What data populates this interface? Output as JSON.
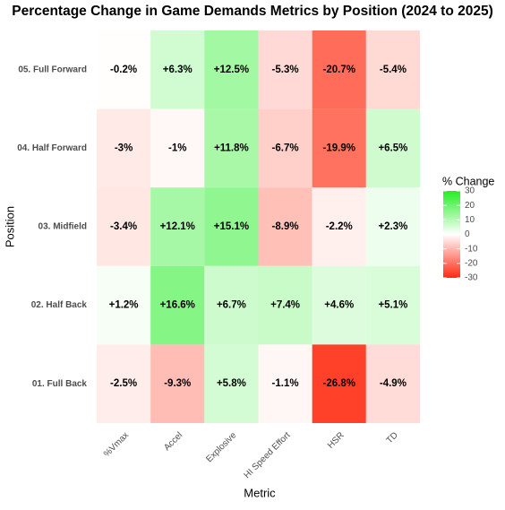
{
  "chart_data": {
    "type": "heatmap",
    "title": "Percentage Change in Game Demands Metrics by Position (2024 to 2025)",
    "x_label": "Metric",
    "y_label": "Position",
    "x_categories": [
      "%Vmax",
      "Accel",
      "Explosive",
      "HI Speed Effort",
      "HSR",
      "TD"
    ],
    "y_categories": [
      "05. Full Forward",
      "04. Half Forward",
      "03. Midfield",
      "02. Half Back",
      "01. Full Back"
    ],
    "values": [
      [
        -0.2,
        6.3,
        12.5,
        -5.3,
        -20.7,
        -5.4
      ],
      [
        -3,
        -1,
        11.8,
        -6.7,
        -19.9,
        6.5
      ],
      [
        -3.4,
        12.1,
        15.1,
        -8.9,
        -2.2,
        2.3
      ],
      [
        1.2,
        16.6,
        6.7,
        7.4,
        4.6,
        5.1
      ],
      [
        -2.5,
        -9.3,
        5.8,
        -1.1,
        -26.8,
        -4.9
      ]
    ],
    "value_labels": [
      [
        "-0.2%",
        "+6.3%",
        "+12.5%",
        "-5.3%",
        "-20.7%",
        "-5.4%"
      ],
      [
        "-3%",
        "-1%",
        "+11.8%",
        "-6.7%",
        "-19.9%",
        "+6.5%"
      ],
      [
        "-3.4%",
        "+12.1%",
        "+15.1%",
        "-8.9%",
        "-2.2%",
        "+2.3%"
      ],
      [
        "+1.2%",
        "+16.6%",
        "+6.7%",
        "+7.4%",
        "+4.6%",
        "+5.1%"
      ],
      [
        "-2.5%",
        "-9.3%",
        "+5.8%",
        "-1.1%",
        "-26.8%",
        "-4.9%"
      ]
    ],
    "legend_title": "% Change",
    "colorscale": {
      "low": "#ff2a10",
      "mid": "#ffffff",
      "high": "#22ee22"
    },
    "clim": [
      -30,
      30
    ],
    "cticks": [
      30,
      20,
      10,
      0,
      -10,
      -20,
      -30
    ]
  }
}
